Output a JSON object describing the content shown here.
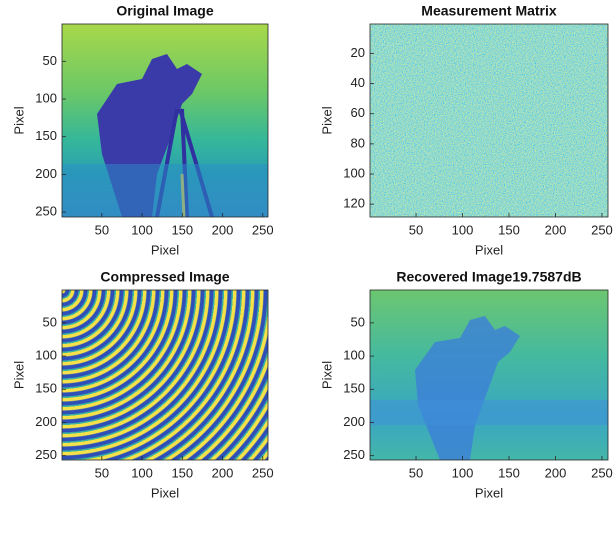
{
  "chart_data": [
    {
      "type": "image",
      "title": "Original Image",
      "xlabel": "Pixel",
      "ylabel": "Pixel",
      "xlim": [
        0.5,
        256.5
      ],
      "ylim": [
        0.5,
        256.5
      ],
      "xticks": [
        50,
        100,
        150,
        200,
        250
      ],
      "yticks": [
        50,
        100,
        150,
        200,
        250
      ]
    },
    {
      "type": "image",
      "title": "Measurement Matrix",
      "xlabel": "Pixel",
      "ylabel": "Pixel",
      "xlim": [
        0.5,
        256.5
      ],
      "ylim": [
        0.5,
        128.5
      ],
      "xticks": [
        50,
        100,
        150,
        200,
        250
      ],
      "yticks": [
        20,
        40,
        60,
        80,
        100,
        120
      ]
    },
    {
      "type": "image",
      "title": "Compressed Image",
      "xlabel": "Pixel",
      "ylabel": "Pixel",
      "xlim": [
        0.5,
        256.5
      ],
      "ylim": [
        0.5,
        256.5
      ],
      "xticks": [
        50,
        100,
        150,
        200,
        250
      ],
      "yticks": [
        50,
        100,
        150,
        200,
        250
      ]
    },
    {
      "type": "image",
      "title": "Recovered Image19.7587dB",
      "xlabel": "Pixel",
      "ylabel": "Pixel",
      "xlim": [
        0.5,
        256.5
      ],
      "ylim": [
        0.5,
        256.5
      ],
      "xticks": [
        50,
        100,
        150,
        200,
        250
      ],
      "yticks": [
        50,
        100,
        150,
        200,
        250
      ]
    }
  ]
}
